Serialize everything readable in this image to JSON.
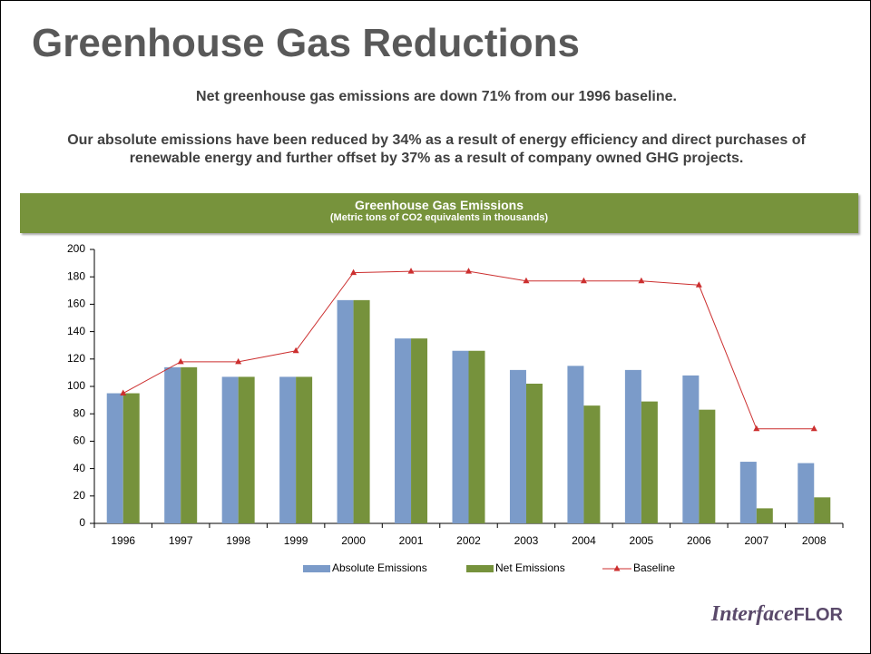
{
  "title": "Greenhouse Gas Reductions",
  "paragraphs": [
    "Net greenhouse gas emissions are down 71% from our 1996 baseline.",
    "Our absolute emissions have been reduced by 34% as a result of energy efficiency and direct purchases of renewable energy and further offset by 37% as a result of company owned GHG projects."
  ],
  "logo": {
    "italic": "Interface",
    "bold": "FLOR"
  },
  "chart_data": {
    "type": "bar",
    "title": "Greenhouse Gas Emissions",
    "subtitle": "(Metric tons of CO2 equivalents in thousands)",
    "categories": [
      "1996",
      "1997",
      "1998",
      "1999",
      "2000",
      "2001",
      "2002",
      "2003",
      "2004",
      "2005",
      "2006",
      "2007",
      "2008"
    ],
    "series": [
      {
        "name": "Absolute Emissions",
        "type": "bar",
        "color": "#7b9bc9",
        "values": [
          95,
          114,
          107,
          107,
          163,
          135,
          126,
          112,
          115,
          112,
          108,
          45,
          44
        ]
      },
      {
        "name": "Net Emissions",
        "type": "bar",
        "color": "#76923c",
        "values": [
          95,
          114,
          107,
          107,
          163,
          135,
          126,
          102,
          86,
          89,
          83,
          11,
          19
        ]
      },
      {
        "name": "Baseline",
        "type": "line",
        "color": "#cc2f2f",
        "values": [
          95,
          118,
          118,
          126,
          183,
          184,
          184,
          177,
          177,
          177,
          174,
          69,
          69
        ]
      }
    ],
    "ylim": [
      0,
      200
    ],
    "yticks": [
      0,
      20,
      40,
      60,
      80,
      100,
      120,
      140,
      160,
      180,
      200
    ],
    "legend": "bottom"
  }
}
